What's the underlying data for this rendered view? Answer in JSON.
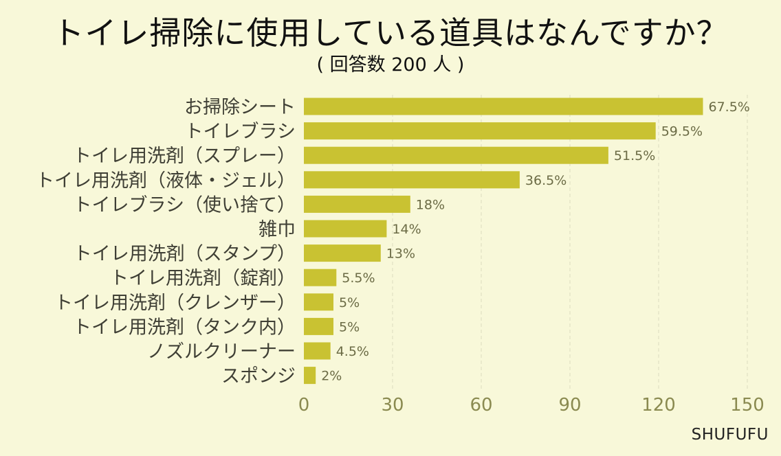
{
  "title": "トイレ掃除に使用している道具はなんですか？",
  "subtitle": "( 回答数 200 人 )",
  "credit": "SHUFUFU",
  "colors": {
    "bar": "#c9c232",
    "background": "#f8f8d9",
    "grid": "#dcdcc0"
  },
  "chart_data": {
    "type": "bar",
    "orientation": "horizontal",
    "title": "トイレ掃除に使用している道具はなんですか？",
    "subtitle": "( 回答数 200 人 )",
    "categories": [
      "お掃除シート",
      "トイレブラシ",
      "トイレ用洗剤（スプレー）",
      "トイレ用洗剤（液体・ジェル）",
      "トイレブラシ（使い捨て）",
      "雑巾",
      "トイレ用洗剤（スタンプ）",
      "トイレ用洗剤（錠剤）",
      "トイレ用洗剤（クレンザー）",
      "トイレ用洗剤（タンク内）",
      "ノズルクリーナー",
      "スポンジ"
    ],
    "values": [
      135,
      119,
      103,
      73,
      36,
      28,
      26,
      11,
      10,
      10,
      9,
      4
    ],
    "data_labels": [
      "67.5%",
      "59.5%",
      "51.5%",
      "36.5%",
      "18%",
      "14%",
      "13%",
      "5.5%",
      "5%",
      "5%",
      "4.5%",
      "2%"
    ],
    "xlim": [
      0,
      150
    ],
    "xticks": [
      0,
      30,
      60,
      90,
      120,
      150
    ],
    "xlabel": "",
    "ylabel": "",
    "grid": true,
    "legend": "none"
  }
}
